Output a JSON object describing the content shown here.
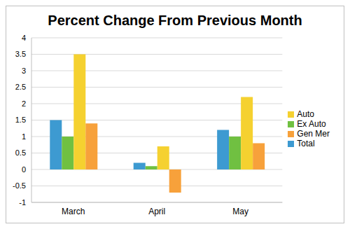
{
  "chart_data": {
    "type": "bar",
    "title": "Percent Change From Previous Month",
    "categories": [
      "March",
      "April",
      "May"
    ],
    "series": [
      {
        "name": "Total",
        "color": "#3d9ad1",
        "values": [
          1.5,
          0.2,
          1.2
        ]
      },
      {
        "name": "Ex Auto",
        "color": "#70c041",
        "values": [
          1.0,
          0.1,
          1.0
        ]
      },
      {
        "name": "Auto",
        "color": "#f5d130",
        "values": [
          3.5,
          0.7,
          2.2
        ]
      },
      {
        "name": "Gen Mer",
        "color": "#f7a13b",
        "values": [
          1.4,
          -0.7,
          0.8
        ]
      }
    ],
    "ylim": [
      -1,
      4
    ],
    "yticks": [
      -1,
      -0.5,
      0,
      0.5,
      1,
      1.5,
      2,
      2.5,
      3,
      3.5,
      4
    ],
    "grid": true,
    "legend": "right"
  }
}
